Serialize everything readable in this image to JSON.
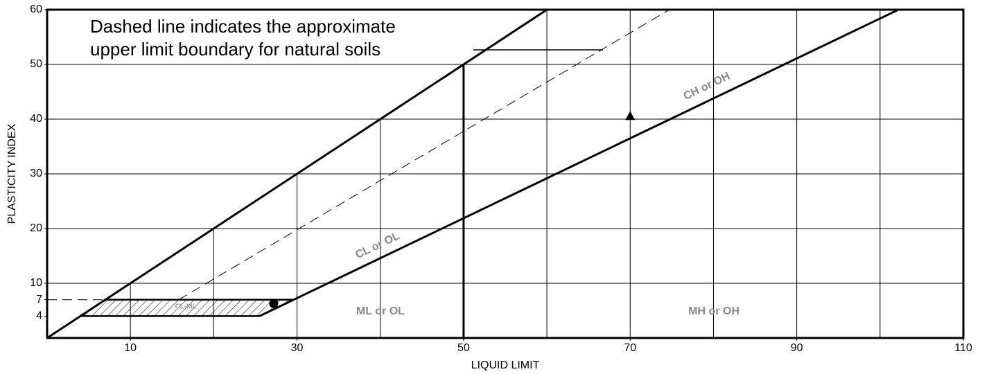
{
  "chart_data": {
    "type": "line",
    "xlabel": "LIQUID LIMIT",
    "ylabel": "PLASTICITY INDEX",
    "xlim": [
      0,
      110
    ],
    "ylim": [
      0,
      60
    ],
    "xticks": [
      10,
      30,
      50,
      70,
      90,
      110
    ],
    "yticks": [
      4,
      7,
      10,
      20,
      30,
      40,
      50,
      60
    ],
    "xgrid": [
      10,
      20,
      30,
      40,
      50,
      60,
      70,
      80,
      90,
      100
    ],
    "ygrid": [
      10,
      20,
      30,
      40,
      50
    ],
    "grid": true,
    "color": "#000000",
    "lines": [
      {
        "x": [
          0,
          60
        ],
        "values": [
          0,
          60
        ],
        "style": "solid"
      },
      {
        "x": [
          15.8,
          74.7
        ],
        "values": [
          7,
          60
        ],
        "style": "dashed"
      },
      {
        "x": [
          25.5,
          102.2
        ],
        "values": [
          4,
          60
        ],
        "style": "solid"
      },
      {
        "x": [
          50,
          50
        ],
        "values": [
          0,
          50
        ],
        "style": "solid"
      },
      {
        "x": [
          0,
          7
        ],
        "values": [
          7,
          7
        ],
        "style": "dashed"
      }
    ],
    "zone": {
      "x": [
        4,
        25.5,
        29.6,
        7
      ],
      "values": [
        4,
        4,
        7,
        7
      ],
      "label": "CL-ML"
    },
    "points": [
      {
        "x": 27.2,
        "y": 6.3,
        "marker": "circle"
      },
      {
        "x": 70,
        "y": 40.6,
        "marker": "triangle"
      }
    ],
    "zone_labels": [
      "ML or OL",
      "MH or OH",
      "CL or OL",
      "CH or OH"
    ],
    "annotation": [
      "Dashed line indicates the approximate",
      "upper limit boundary for natural soils"
    ]
  }
}
